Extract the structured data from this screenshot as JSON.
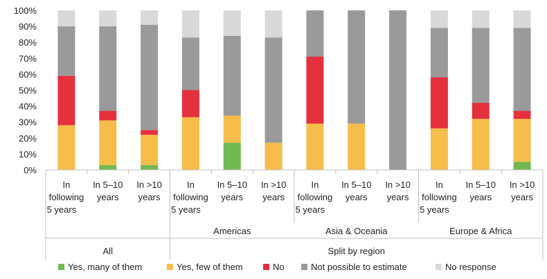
{
  "chart_data": {
    "type": "bar",
    "stacked": true,
    "ylim": [
      0,
      100
    ],
    "y_ticks": [
      "0%",
      "10%",
      "20%",
      "30%",
      "40%",
      "50%",
      "60%",
      "70%",
      "80%",
      "90%",
      "100%"
    ],
    "y_tick_values": [
      0,
      10,
      20,
      30,
      40,
      50,
      60,
      70,
      80,
      90,
      100
    ],
    "grid": false,
    "legend_position": "bottom",
    "categories": [
      [
        "In",
        "following",
        "5 years"
      ],
      [
        "In 5–10",
        "years"
      ],
      [
        "In >10",
        "years"
      ],
      [
        "In",
        "following",
        "5 years"
      ],
      [
        "In 5–10",
        "years"
      ],
      [
        "In >10",
        "years"
      ],
      [
        "In",
        "following",
        "5 years"
      ],
      [
        "In 5–10",
        "years"
      ],
      [
        "In >10",
        "years"
      ],
      [
        "In",
        "following",
        "5 years"
      ],
      [
        "In 5–10",
        "years"
      ],
      [
        "In >10",
        "years"
      ]
    ],
    "regions": [
      "",
      "Americas",
      "Asia & Oceania",
      "Europe & Africa"
    ],
    "top_groups": [
      {
        "label": "All",
        "span": [
          0,
          1
        ]
      },
      {
        "label": "Split by region",
        "span": [
          1,
          4
        ]
      }
    ],
    "series": [
      {
        "name": "Yes, many of them",
        "color": "#70b84f",
        "values": [
          0,
          3,
          3,
          0,
          17,
          0,
          0,
          0,
          0,
          0,
          0,
          5
        ]
      },
      {
        "name": "Yes, few of them",
        "color": "#f6bd4a",
        "values": [
          28,
          28,
          19,
          33,
          17,
          17,
          29,
          29,
          0,
          26,
          32,
          27
        ]
      },
      {
        "name": "No",
        "color": "#e5303d",
        "values": [
          31,
          6,
          3,
          17,
          0,
          0,
          42,
          0,
          0,
          32,
          10,
          5
        ]
      },
      {
        "name": "Not possible to estimate",
        "color": "#9a9a9a",
        "values": [
          31,
          53,
          66,
          33,
          50,
          66,
          29,
          71,
          100,
          31,
          47,
          52
        ]
      },
      {
        "name": "No response",
        "color": "#d9d9d9",
        "values": [
          10,
          10,
          9,
          17,
          16,
          17,
          0,
          0,
          0,
          11,
          11,
          11
        ]
      }
    ]
  }
}
